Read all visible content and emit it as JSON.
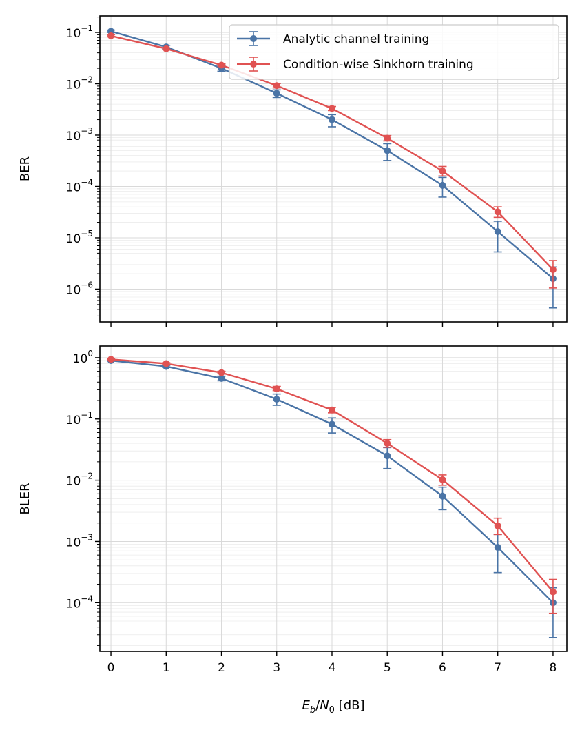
{
  "chart_data": [
    {
      "type": "line",
      "panel": "top",
      "title": "",
      "xlabel": "",
      "ylabel": "BER",
      "yscale": "log",
      "xlim": [
        -0.2,
        8.25
      ],
      "ylim": [
        2.3e-07,
        0.21
      ],
      "xticks": [
        0,
        1,
        2,
        3,
        4,
        5,
        6,
        7,
        8
      ],
      "x_ticklabels_shown": false,
      "yticks": [
        {
          "value": 0.1,
          "base": "10",
          "exp": "−1"
        },
        {
          "value": 0.01,
          "base": "10",
          "exp": "−2"
        },
        {
          "value": 0.001,
          "base": "10",
          "exp": "−3"
        },
        {
          "value": 0.0001,
          "base": "10",
          "exp": "−4"
        },
        {
          "value": 1e-05,
          "base": "10",
          "exp": "−5"
        },
        {
          "value": 1e-06,
          "base": "10",
          "exp": "−6"
        }
      ],
      "grid": true,
      "legend": "top-right",
      "x": [
        0,
        1,
        2,
        3,
        4,
        5,
        6,
        7,
        8
      ],
      "series": [
        {
          "name": "Analytic channel training",
          "color": "#4a74a6",
          "values": [
            0.105,
            0.052,
            0.02,
            0.0065,
            0.002,
            0.0005,
            0.000105,
            1.32e-05,
            1.6e-06
          ],
          "err_low": [
            0.1,
            0.048,
            0.0175,
            0.0054,
            0.00145,
            0.00032,
            6.2e-05,
            5.3e-06,
            4.3e-07
          ],
          "err_high": [
            0.111,
            0.056,
            0.0225,
            0.0076,
            0.0025,
            0.00068,
            0.00015,
            2.1e-05,
            2.7e-06
          ]
        },
        {
          "name": "Condition-wise Sinkhorn training",
          "color": "#e05252",
          "values": [
            0.086,
            0.048,
            0.023,
            0.0092,
            0.0033,
            0.00087,
            0.0002,
            3.2e-05,
            2.4e-06
          ],
          "err_low": [
            0.082,
            0.046,
            0.0218,
            0.0083,
            0.003,
            0.00077,
            0.00016,
            2.5e-05,
            1.05e-06
          ],
          "err_high": [
            0.09,
            0.05,
            0.0242,
            0.0101,
            0.0036,
            0.00098,
            0.000245,
            4e-05,
            3.6e-06
          ]
        }
      ]
    },
    {
      "type": "line",
      "panel": "bottom",
      "title": "",
      "xlabel": "E_b/N_0 [dB]",
      "ylabel": "BLER",
      "yscale": "log",
      "xlim": [
        -0.2,
        8.25
      ],
      "ylim": [
        1.6e-05,
        1.55
      ],
      "xticks": [
        0,
        1,
        2,
        3,
        4,
        5,
        6,
        7,
        8
      ],
      "x_ticklabels_shown": true,
      "yticks": [
        {
          "value": 1,
          "base": "10",
          "exp": "0"
        },
        {
          "value": 0.1,
          "base": "10",
          "exp": "−1"
        },
        {
          "value": 0.01,
          "base": "10",
          "exp": "−2"
        },
        {
          "value": 0.001,
          "base": "10",
          "exp": "−3"
        },
        {
          "value": 0.0001,
          "base": "10",
          "exp": "−4"
        }
      ],
      "grid": true,
      "legend": "",
      "x": [
        0,
        1,
        2,
        3,
        4,
        5,
        6,
        7,
        8
      ],
      "series": [
        {
          "name": "Analytic channel training",
          "color": "#4a74a6",
          "values": [
            0.9,
            0.72,
            0.46,
            0.21,
            0.082,
            0.025,
            0.0055,
            0.0008,
            0.0001
          ],
          "err_low": [
            0.88,
            0.69,
            0.42,
            0.167,
            0.059,
            0.0155,
            0.0033,
            0.00031,
            2.7e-05
          ],
          "err_high": [
            0.92,
            0.75,
            0.5,
            0.255,
            0.104,
            0.034,
            0.0077,
            0.0013,
            0.000175
          ]
        },
        {
          "name": "Condition-wise Sinkhorn training",
          "color": "#e05252",
          "values": [
            0.94,
            0.8,
            0.57,
            0.31,
            0.14,
            0.04,
            0.0102,
            0.0018,
            0.00015
          ],
          "err_low": [
            0.93,
            0.78,
            0.55,
            0.29,
            0.126,
            0.0345,
            0.0083,
            0.0013,
            6.7e-05
          ],
          "err_high": [
            0.96,
            0.83,
            0.6,
            0.34,
            0.155,
            0.046,
            0.0122,
            0.0024,
            0.00024
          ]
        }
      ]
    }
  ],
  "legend": {
    "items": [
      {
        "label": "Analytic channel training",
        "color": "#4a74a6"
      },
      {
        "label": "Condition-wise Sinkhorn training",
        "color": "#e05252"
      }
    ]
  },
  "xlabel_parts": {
    "e": "E",
    "b": "b",
    "slash": "/",
    "n": "N",
    "zero": "0",
    "unit": " [dB]"
  }
}
